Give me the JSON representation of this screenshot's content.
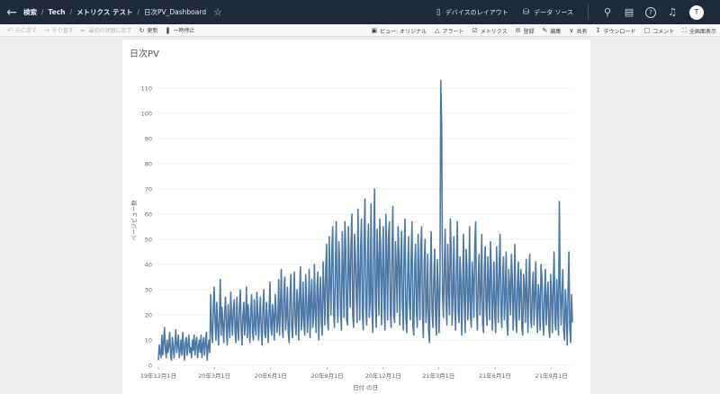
{
  "nav": {
    "breadcrumbs": [
      "検索",
      "Tech",
      "メトリクス テスト",
      "日次PV_Dashboard"
    ]
  },
  "topbar": {
    "device_layout": "デバイスのレイアウト",
    "data_source": "データ ソース",
    "avatar_initial": "T"
  },
  "toolbar": {
    "undo": "元に戻す",
    "redo": "やり直す",
    "revert": "最初の状態に戻す",
    "refresh": "更新",
    "pause": "一時停止",
    "view": "ビュー: オリジナル",
    "alert": "アラート",
    "metrics": "メトリクス",
    "subscribe": "登録",
    "edit": "編集",
    "share": "共有",
    "download": "ダウンロード",
    "comment": "コメント",
    "fullscreen": "全画面表示"
  },
  "chart_data": {
    "type": "line",
    "title": "日次PV",
    "xlabel": "日付 の日",
    "ylabel": "ページビュー数",
    "ylim": [
      0,
      115
    ],
    "yticks": [
      0,
      10,
      20,
      30,
      40,
      50,
      60,
      70,
      80,
      90,
      100,
      110
    ],
    "xticks": [
      "19年12月1日",
      "20年3月1日",
      "20年6月1日",
      "20年9月1日",
      "20年12月1日",
      "21年3月1日",
      "21年6月1日",
      "21年9月1日"
    ],
    "x_start": "2019-12-01",
    "x_end": "2021-10-05",
    "series_color": "#4e79a7",
    "y": [
      2,
      8,
      5,
      3,
      12,
      4,
      9,
      15,
      6,
      3,
      10,
      5,
      8,
      13,
      4,
      2,
      11,
      7,
      3,
      9,
      14,
      5,
      8,
      12,
      3,
      6,
      10,
      4,
      13,
      7,
      2,
      9,
      11,
      4,
      8,
      12,
      5,
      7,
      3,
      10,
      6,
      12,
      4,
      9,
      11,
      3,
      7,
      10,
      5,
      12,
      3,
      8,
      11,
      4,
      9,
      13,
      2,
      7,
      10,
      5,
      28,
      14,
      9,
      22,
      31,
      17,
      10,
      25,
      16,
      8,
      19,
      34,
      12,
      23,
      16,
      9,
      21,
      27,
      14,
      8,
      24,
      17,
      11,
      29,
      19,
      12,
      22,
      26,
      13,
      9,
      27,
      15,
      10,
      23,
      30,
      14,
      8,
      20,
      25,
      12,
      18,
      31,
      11,
      24,
      17,
      9,
      22,
      28,
      13,
      10,
      26,
      16,
      12,
      29,
      21,
      10,
      19,
      27,
      14,
      8,
      23,
      30,
      13,
      11,
      25,
      18,
      9,
      21,
      33,
      15,
      12,
      24,
      19,
      10,
      28,
      22,
      13,
      17,
      34,
      12,
      23,
      38,
      16,
      11,
      29,
      35,
      14,
      20,
      31,
      13,
      9,
      27,
      36,
      15,
      11,
      24,
      37,
      17,
      12,
      30,
      25,
      10,
      28,
      39,
      14,
      19,
      33,
      16,
      12,
      36,
      27,
      13,
      21,
      38,
      11,
      26,
      34,
      15,
      18,
      40,
      22,
      13,
      31,
      37,
      10,
      24,
      35,
      17,
      12,
      41,
      29,
      16,
      38,
      48,
      18,
      14,
      51,
      33,
      20,
      45,
      55,
      22,
      15,
      38,
      57,
      26,
      17,
      49,
      41,
      21,
      14,
      53,
      36,
      19,
      57,
      46,
      18,
      16,
      55,
      39,
      23,
      48,
      60,
      20,
      15,
      52,
      44,
      27,
      17,
      62,
      35,
      18,
      46,
      58,
      21,
      14,
      50,
      66,
      24,
      16,
      43,
      56,
      19,
      26,
      64,
      22,
      13,
      48,
      70,
      25,
      15,
      54,
      40,
      20,
      58,
      47,
      16,
      36,
      55,
      23,
      14,
      60,
      42,
      18,
      51,
      57,
      22,
      15,
      45,
      63,
      20,
      17,
      49,
      38,
      21,
      55,
      44,
      16,
      40,
      53,
      24,
      14,
      47,
      58,
      19,
      13,
      36,
      51,
      25,
      18,
      43,
      57,
      16,
      12,
      39,
      48,
      22,
      15,
      52,
      34,
      18,
      46,
      55,
      20,
      11,
      41,
      50,
      17,
      24,
      44,
      14,
      9,
      38,
      53,
      21,
      15,
      35,
      46,
      19,
      12,
      42,
      32,
      13,
      30,
      113,
      96,
      28,
      19,
      37,
      54,
      25,
      16,
      48,
      31,
      20,
      58,
      44,
      16,
      28,
      51,
      24,
      14,
      39,
      57,
      21,
      17,
      43,
      35,
      12,
      30,
      52,
      24,
      13,
      46,
      39,
      18,
      27,
      55,
      20,
      15,
      41,
      33,
      19,
      48,
      57,
      23,
      14,
      36,
      44,
      20,
      29,
      52,
      17,
      13,
      38,
      47,
      22,
      16,
      43,
      30,
      18,
      49,
      37,
      14,
      26,
      41,
      20,
      13,
      47,
      32,
      17,
      39,
      52,
      22,
      15,
      35,
      43,
      18,
      27,
      45,
      16,
      12,
      38,
      31,
      20,
      44,
      35,
      14,
      26,
      48,
      19,
      13,
      33,
      41,
      18,
      29,
      38,
      15,
      12,
      36,
      30,
      17,
      42,
      27,
      13,
      33,
      44,
      20,
      15,
      30,
      37,
      16,
      28,
      41,
      21,
      13,
      32,
      26,
      14,
      40,
      35,
      18,
      12,
      29,
      38,
      16,
      26,
      33,
      15,
      11,
      36,
      28,
      13,
      31,
      45,
      17,
      14,
      34,
      24,
      12,
      65,
      32,
      16,
      27,
      38,
      14,
      10,
      30,
      22,
      8,
      29,
      45,
      15,
      9,
      28,
      17
    ]
  }
}
